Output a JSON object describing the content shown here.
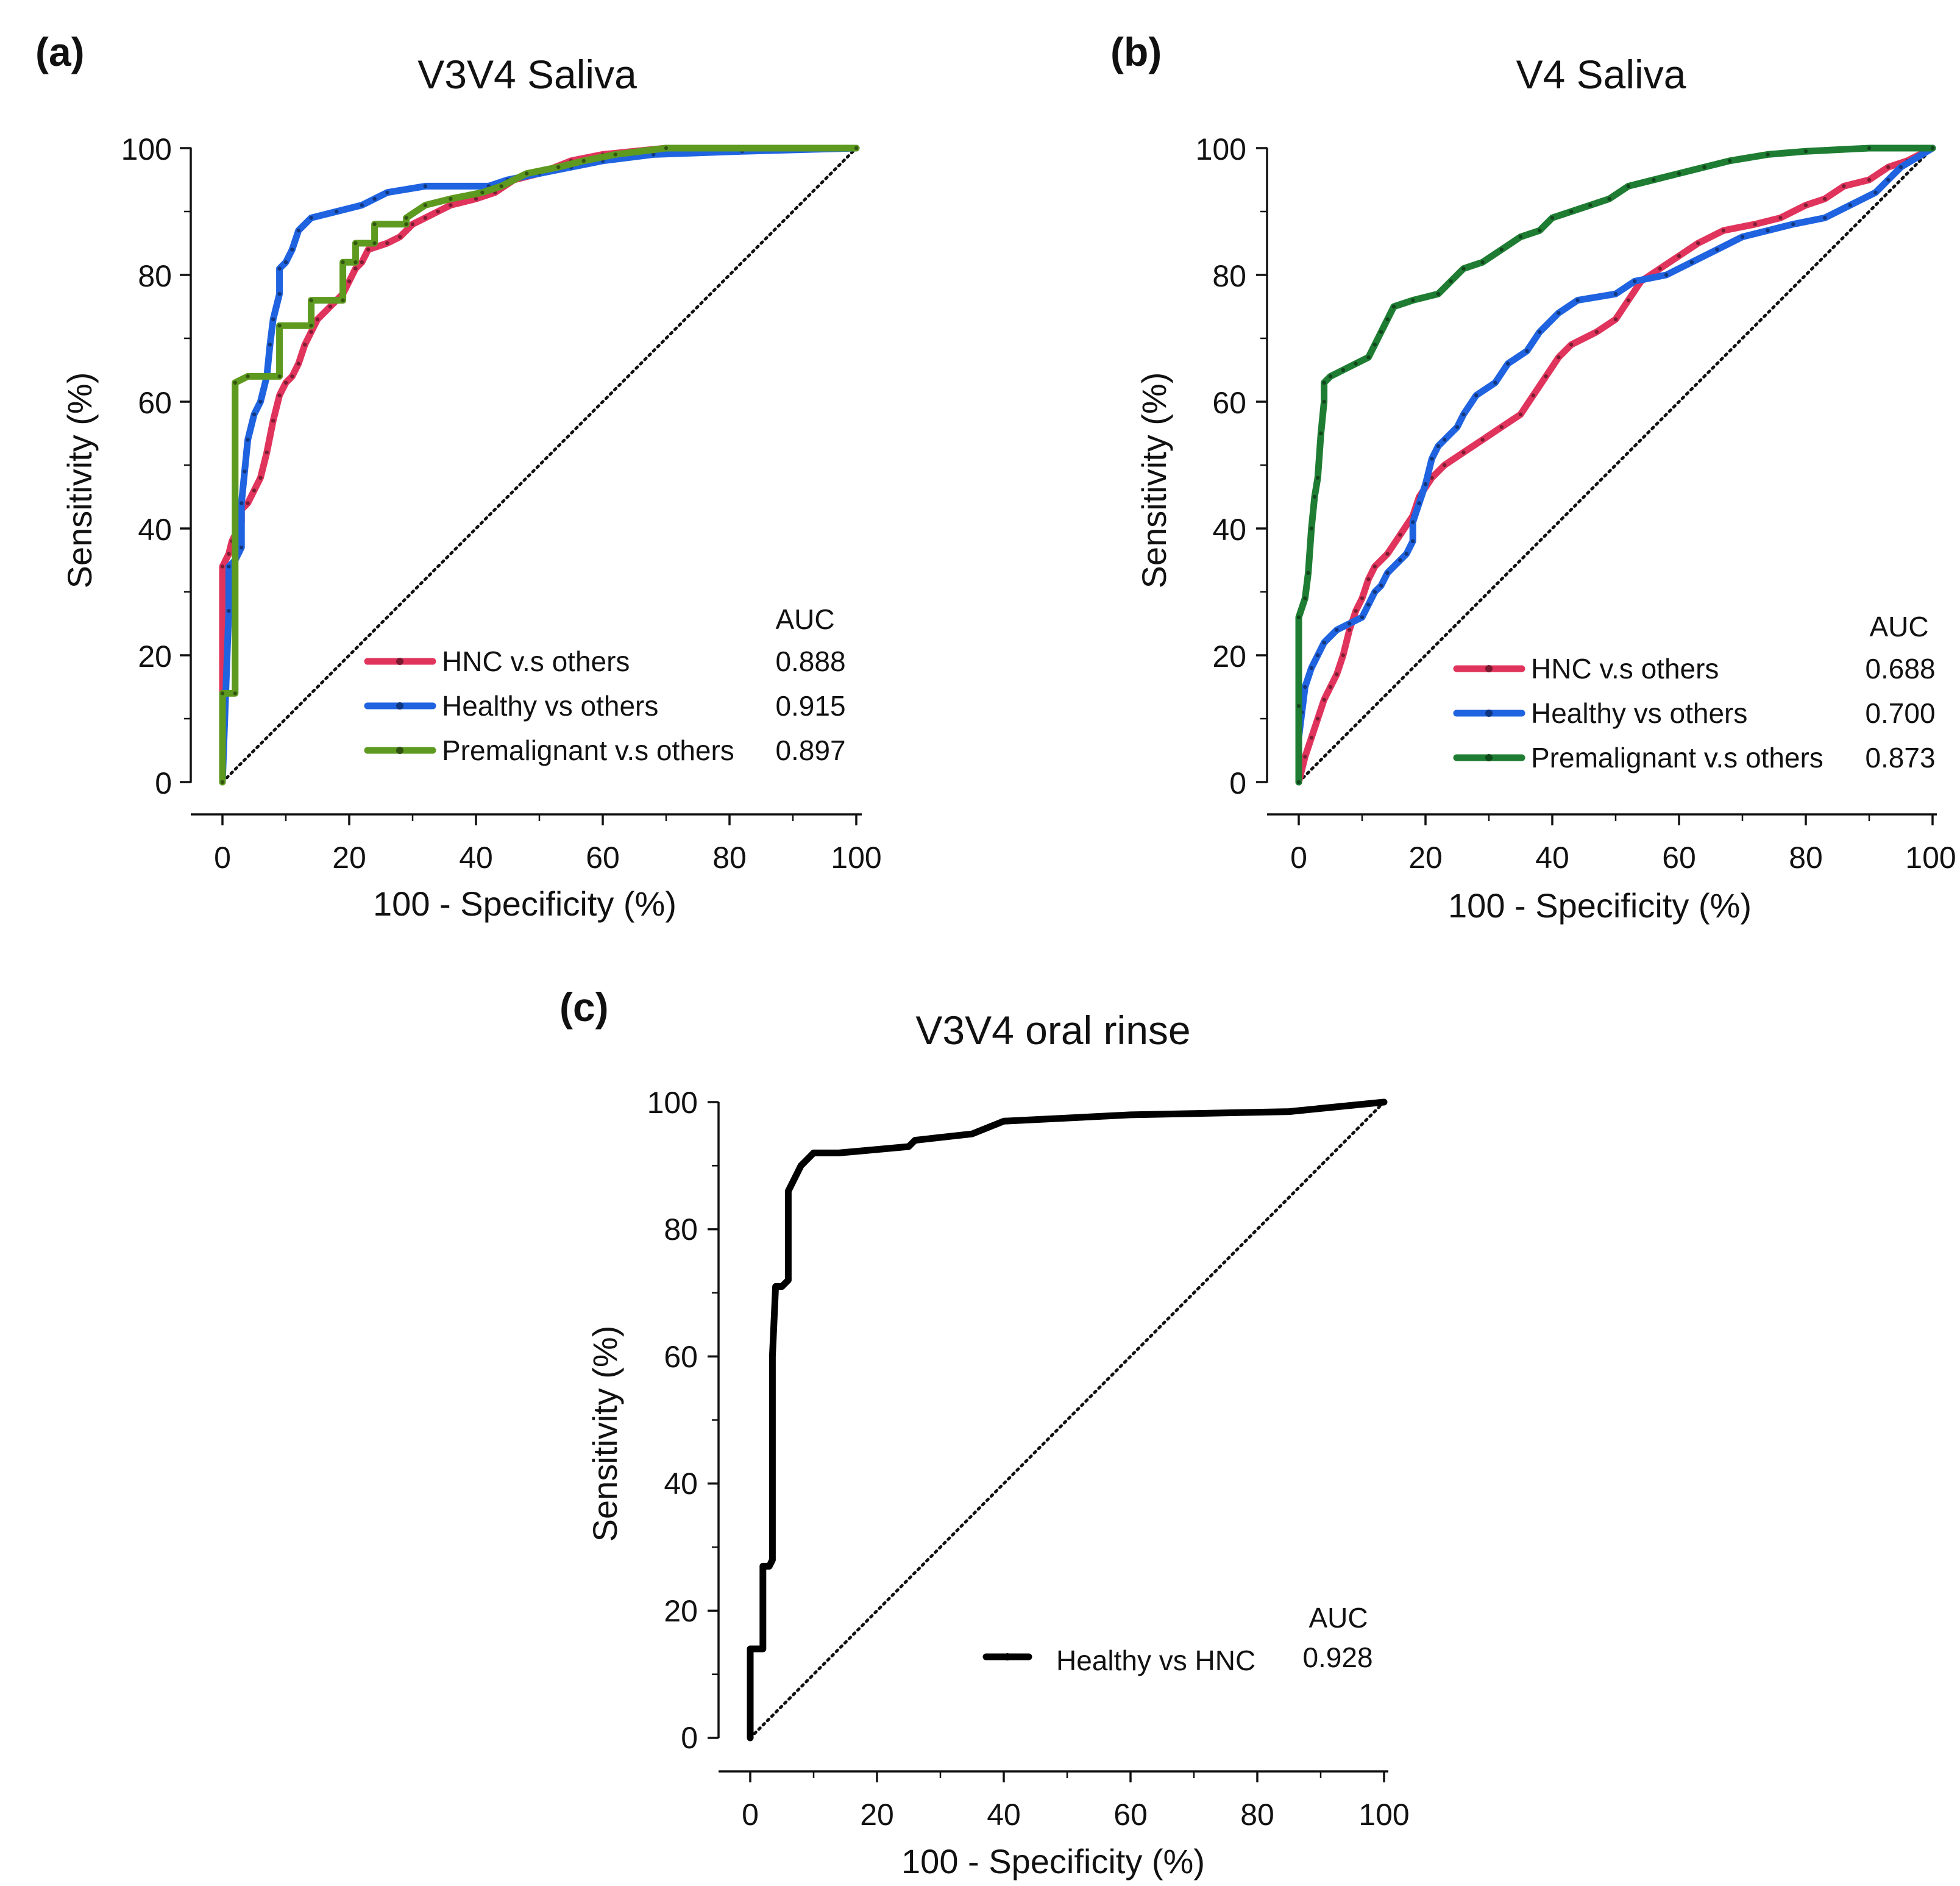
{
  "chart_data": [
    {
      "type": "line",
      "panel_label": "(a)",
      "title": "V3V4 Saliva",
      "xlabel": "100 - Specificity (%)",
      "ylabel": "Sensitivity (%)",
      "xlim": [
        0,
        100
      ],
      "ylim": [
        0,
        100
      ],
      "xticks": [
        "0",
        "20",
        "40",
        "60",
        "80",
        "100"
      ],
      "yticks": [
        "0",
        "20",
        "40",
        "60",
        "80",
        "100"
      ],
      "reference_line": "diagonal (dotted)",
      "legend_header": "AUC",
      "series": [
        {
          "name": "HNC v.s others",
          "auc": "0.888",
          "color": "#e0345c",
          "points": [
            [
              0,
              0
            ],
            [
              0,
              14
            ],
            [
              0,
              34
            ],
            [
              1,
              36
            ],
            [
              1.5,
              38
            ],
            [
              2,
              39
            ],
            [
              3,
              41
            ],
            [
              3,
              43
            ],
            [
              4,
              44
            ],
            [
              5,
              46
            ],
            [
              6,
              48
            ],
            [
              7,
              52
            ],
            [
              8,
              57
            ],
            [
              9,
              61
            ],
            [
              10,
              63
            ],
            [
              11,
              64
            ],
            [
              12,
              66
            ],
            [
              13,
              69
            ],
            [
              14,
              71
            ],
            [
              15,
              73
            ],
            [
              17,
              75
            ],
            [
              19,
              77
            ],
            [
              20,
              79
            ],
            [
              21,
              81
            ],
            [
              22,
              82
            ],
            [
              23,
              84
            ],
            [
              26,
              85
            ],
            [
              28,
              86
            ],
            [
              30,
              88
            ],
            [
              32,
              89
            ],
            [
              34,
              90
            ],
            [
              36,
              91
            ],
            [
              40,
              92
            ],
            [
              43,
              93
            ],
            [
              46,
              95
            ],
            [
              50,
              96
            ],
            [
              55,
              98
            ],
            [
              60,
              99
            ],
            [
              70,
              100
            ],
            [
              100,
              100
            ]
          ]
        },
        {
          "name": "Healthy vs others",
          "auc": "0.915",
          "color": "#1f63e0",
          "points": [
            [
              0,
              0
            ],
            [
              1,
              27
            ],
            [
              1,
              34
            ],
            [
              2,
              35
            ],
            [
              3,
              37
            ],
            [
              3,
              44
            ],
            [
              3.5,
              49
            ],
            [
              4,
              54
            ],
            [
              5,
              58
            ],
            [
              6,
              60
            ],
            [
              7,
              64
            ],
            [
              7.5,
              69
            ],
            [
              8,
              73
            ],
            [
              9,
              77
            ],
            [
              9,
              81
            ],
            [
              10,
              82
            ],
            [
              11,
              84
            ],
            [
              12,
              87
            ],
            [
              14,
              89
            ],
            [
              18,
              90
            ],
            [
              22,
              91
            ],
            [
              24,
              92
            ],
            [
              26,
              93
            ],
            [
              32,
              94
            ],
            [
              42,
              94
            ],
            [
              45,
              95
            ],
            [
              50,
              96
            ],
            [
              55,
              97
            ],
            [
              60,
              98
            ],
            [
              68,
              99
            ],
            [
              82,
              99.5
            ],
            [
              100,
              100
            ]
          ]
        },
        {
          "name": "Premalignant v.s others",
          "auc": "0.897",
          "color": "#5d9a1f",
          "points": [
            [
              0,
              0
            ],
            [
              0,
              14
            ],
            [
              2,
              14
            ],
            [
              2,
              63
            ],
            [
              4,
              64
            ],
            [
              9,
              64
            ],
            [
              9,
              72
            ],
            [
              14,
              72
            ],
            [
              14,
              76
            ],
            [
              19,
              76
            ],
            [
              19,
              82
            ],
            [
              21,
              82
            ],
            [
              21,
              85
            ],
            [
              24,
              85
            ],
            [
              24,
              88
            ],
            [
              29,
              88
            ],
            [
              29,
              89
            ],
            [
              32,
              91
            ],
            [
              36,
              92
            ],
            [
              41,
              93
            ],
            [
              44,
              94
            ],
            [
              48,
              96
            ],
            [
              53,
              97
            ],
            [
              57,
              98
            ],
            [
              62,
              99
            ],
            [
              70,
              100
            ],
            [
              100,
              100
            ]
          ]
        }
      ]
    },
    {
      "type": "line",
      "panel_label": "(b)",
      "title": "V4 Saliva",
      "xlabel": "100 - Specificity (%)",
      "ylabel": "Sensitivity (%)",
      "xlim": [
        0,
        100
      ],
      "ylim": [
        0,
        100
      ],
      "xticks": [
        "0",
        "20",
        "40",
        "60",
        "80",
        "100"
      ],
      "yticks": [
        "0",
        "20",
        "40",
        "60",
        "80",
        "100"
      ],
      "reference_line": "diagonal (dotted)",
      "legend_header": "AUC",
      "series": [
        {
          "name": "HNC v.s others",
          "auc": "0.688",
          "color": "#e0345c",
          "points": [
            [
              0,
              0
            ],
            [
              1,
              4
            ],
            [
              2,
              7
            ],
            [
              3,
              10
            ],
            [
              4,
              13
            ],
            [
              5,
              15
            ],
            [
              6,
              17
            ],
            [
              7,
              20
            ],
            [
              8,
              24
            ],
            [
              9,
              27
            ],
            [
              10,
              29
            ],
            [
              11,
              32
            ],
            [
              12,
              34
            ],
            [
              14,
              36
            ],
            [
              16,
              39
            ],
            [
              18,
              42
            ],
            [
              19,
              45
            ],
            [
              21,
              48
            ],
            [
              23,
              50
            ],
            [
              26,
              52
            ],
            [
              29,
              54
            ],
            [
              32,
              56
            ],
            [
              35,
              58
            ],
            [
              37,
              61
            ],
            [
              39,
              64
            ],
            [
              41,
              67
            ],
            [
              43,
              69
            ],
            [
              47,
              71
            ],
            [
              50,
              73
            ],
            [
              52,
              76
            ],
            [
              54,
              79
            ],
            [
              57,
              81
            ],
            [
              60,
              83
            ],
            [
              63,
              85
            ],
            [
              67,
              87
            ],
            [
              72,
              88
            ],
            [
              76,
              89
            ],
            [
              80,
              91
            ],
            [
              83,
              92
            ],
            [
              86,
              94
            ],
            [
              90,
              95
            ],
            [
              93,
              97
            ],
            [
              96,
              98
            ],
            [
              100,
              100
            ]
          ]
        },
        {
          "name": "Healthy vs others",
          "auc": "0.700",
          "color": "#1f63e0",
          "points": [
            [
              0,
              0
            ],
            [
              0,
              7
            ],
            [
              0.5,
              11
            ],
            [
              1,
              15
            ],
            [
              2,
              18
            ],
            [
              3,
              20
            ],
            [
              4,
              22
            ],
            [
              6,
              24
            ],
            [
              8,
              25
            ],
            [
              10,
              26
            ],
            [
              11,
              28
            ],
            [
              12,
              30
            ],
            [
              13,
              31
            ],
            [
              14,
              33
            ],
            [
              16,
              35
            ],
            [
              17,
              36
            ],
            [
              18,
              38
            ],
            [
              18,
              41
            ],
            [
              19,
              44
            ],
            [
              20,
              47
            ],
            [
              21,
              51
            ],
            [
              22,
              53
            ],
            [
              23,
              54
            ],
            [
              25,
              56
            ],
            [
              26,
              58
            ],
            [
              28,
              61
            ],
            [
              31,
              63
            ],
            [
              33,
              66
            ],
            [
              36,
              68
            ],
            [
              38,
              71
            ],
            [
              41,
              74
            ],
            [
              44,
              76
            ],
            [
              50,
              77
            ],
            [
              53,
              79
            ],
            [
              58,
              80
            ],
            [
              62,
              82
            ],
            [
              66,
              84
            ],
            [
              70,
              86
            ],
            [
              74,
              87
            ],
            [
              78,
              88
            ],
            [
              83,
              89
            ],
            [
              87,
              91
            ],
            [
              91,
              93
            ],
            [
              93,
              95
            ],
            [
              95,
              97
            ],
            [
              100,
              100
            ]
          ]
        },
        {
          "name": "Premalignant v.s others",
          "auc": "0.873",
          "color": "#1e7d32",
          "points": [
            [
              0,
              0
            ],
            [
              0,
              12
            ],
            [
              0,
              26
            ],
            [
              1,
              29
            ],
            [
              1.5,
              33
            ],
            [
              2,
              40
            ],
            [
              2.5,
              45
            ],
            [
              3,
              48
            ],
            [
              3.5,
              55
            ],
            [
              4,
              60
            ],
            [
              4,
              63
            ],
            [
              5,
              64
            ],
            [
              7,
              65
            ],
            [
              9,
              66
            ],
            [
              11,
              67
            ],
            [
              12,
              69
            ],
            [
              13,
              71
            ],
            [
              14,
              73
            ],
            [
              15,
              75
            ],
            [
              18,
              76
            ],
            [
              22,
              77
            ],
            [
              24,
              79
            ],
            [
              26,
              81
            ],
            [
              29,
              82
            ],
            [
              32,
              84
            ],
            [
              35,
              86
            ],
            [
              38,
              87
            ],
            [
              40,
              89
            ],
            [
              43,
              90
            ],
            [
              46,
              91
            ],
            [
              49,
              92
            ],
            [
              52,
              94
            ],
            [
              56,
              95
            ],
            [
              60,
              96
            ],
            [
              64,
              97
            ],
            [
              68,
              98
            ],
            [
              74,
              99
            ],
            [
              80,
              99.5
            ],
            [
              90,
              100
            ],
            [
              100,
              100
            ]
          ]
        }
      ]
    },
    {
      "type": "line",
      "panel_label": "(c)",
      "title": "V3V4 oral rinse",
      "xlabel": "100 - Specificity (%)",
      "ylabel": "Sensitivity (%)",
      "xlim": [
        0,
        100
      ],
      "ylim": [
        0,
        100
      ],
      "xticks": [
        "0",
        "20",
        "40",
        "60",
        "80",
        "100"
      ],
      "yticks": [
        "0",
        "20",
        "40",
        "60",
        "80",
        "100"
      ],
      "reference_line": "diagonal (dotted)",
      "legend_header": "AUC",
      "series": [
        {
          "name": "Healthy vs HNC",
          "auc": "0.928",
          "color": "#000000",
          "points": [
            [
              0,
              0
            ],
            [
              0,
              14
            ],
            [
              2,
              14
            ],
            [
              2,
              20
            ],
            [
              2,
              27
            ],
            [
              3,
              27
            ],
            [
              3.5,
              28
            ],
            [
              3.5,
              45
            ],
            [
              3.5,
              60
            ],
            [
              4,
              71
            ],
            [
              5,
              71
            ],
            [
              6,
              72
            ],
            [
              6,
              78
            ],
            [
              6,
              86
            ],
            [
              7,
              88
            ],
            [
              8,
              90
            ],
            [
              9,
              91
            ],
            [
              10,
              92
            ],
            [
              14,
              92
            ],
            [
              25,
              93
            ],
            [
              26,
              94
            ],
            [
              35,
              95
            ],
            [
              40,
              97
            ],
            [
              60,
              98
            ],
            [
              85,
              98.5
            ],
            [
              90,
              99
            ],
            [
              100,
              100
            ]
          ]
        }
      ]
    }
  ]
}
